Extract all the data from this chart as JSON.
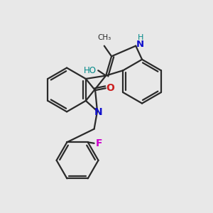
{
  "background_color": "#e8e8e8",
  "bond_color": "#2a2a2a",
  "N_color": "#1010cc",
  "O_color": "#cc2020",
  "F_color": "#cc00cc",
  "H_color": "#008888",
  "figsize": [
    3.0,
    3.0
  ],
  "dpi": 100,
  "xlim": [
    0,
    10
  ],
  "ylim": [
    0,
    10
  ]
}
